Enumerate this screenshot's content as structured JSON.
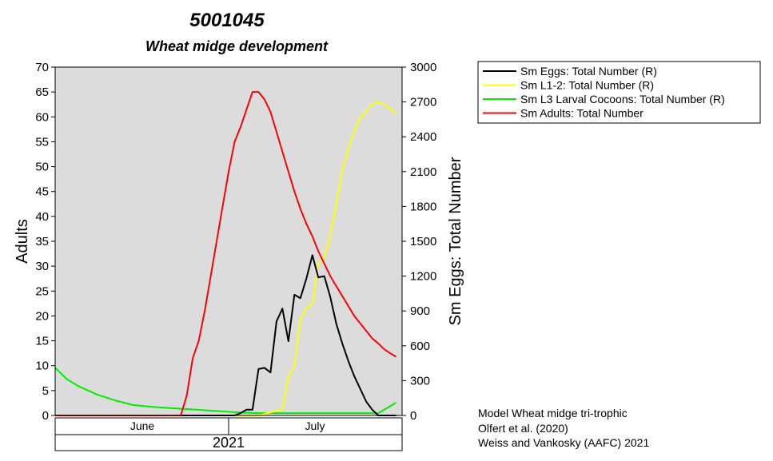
{
  "chart_data": {
    "type": "line",
    "title": "5001045",
    "subtitle": "Wheat midge development",
    "ylabel_left": "Adults",
    "ylabel_right": "Sm Eggs: Total Number",
    "ylim_left": [
      0,
      70
    ],
    "ylim_right": [
      0,
      3000
    ],
    "yticks_left": [
      0,
      5,
      10,
      15,
      20,
      25,
      30,
      35,
      40,
      45,
      50,
      55,
      60,
      65,
      70
    ],
    "yticks_right": [
      0,
      300,
      600,
      900,
      1200,
      1500,
      1800,
      2100,
      2400,
      2700,
      3000
    ],
    "xlim": [
      1,
      59
    ],
    "x_unit_note": "day index starting June 1, 2021",
    "month_bands": [
      {
        "label": "June",
        "from": 1,
        "to": 31
      },
      {
        "label": "July",
        "from": 31,
        "to": 59
      }
    ],
    "year_label": "2021",
    "grid": false,
    "legend_position": "right",
    "series": [
      {
        "name": "Sm Eggs: Total Number (R)",
        "axis": "right",
        "color": "#000000",
        "x": [
          1,
          5,
          10,
          15,
          20,
          25,
          30,
          31,
          32,
          33,
          34,
          35,
          36,
          37,
          38,
          39,
          40,
          41,
          42,
          43,
          44,
          45,
          46,
          47,
          48,
          49,
          50,
          51,
          52,
          53,
          54,
          55,
          56,
          57,
          58
        ],
        "y": [
          0,
          0,
          0,
          0,
          0,
          0,
          0,
          0,
          20,
          50,
          50,
          400,
          410,
          370,
          810,
          920,
          640,
          1040,
          1010,
          1180,
          1380,
          1190,
          1200,
          1020,
          790,
          620,
          470,
          340,
          230,
          120,
          50,
          0,
          0,
          0,
          0
        ]
      },
      {
        "name": "Sm L1-2: Total Number (R)",
        "axis": "right",
        "color": "#ffff00",
        "x": [
          1,
          5,
          10,
          15,
          20,
          25,
          30,
          35,
          38,
          39,
          40,
          41,
          42,
          43,
          44,
          45,
          46,
          47,
          48,
          49,
          50,
          51,
          52,
          53,
          54,
          55,
          56,
          57,
          58
        ],
        "y": [
          0,
          0,
          0,
          0,
          0,
          0,
          0,
          0,
          40,
          50,
          340,
          420,
          830,
          920,
          960,
          1320,
          1360,
          1550,
          1820,
          2110,
          2300,
          2450,
          2560,
          2620,
          2680,
          2700,
          2680,
          2640,
          2600
        ]
      },
      {
        "name": "Sm L3 Larval Cocoons: Total Number (R)",
        "axis": "right",
        "color": "#00ee00",
        "x": [
          1,
          3,
          5,
          8,
          11,
          14,
          17,
          20,
          23,
          26,
          29,
          32,
          35,
          38,
          41,
          44,
          47,
          50,
          53,
          55,
          56,
          57,
          58
        ],
        "y": [
          410,
          310,
          250,
          180,
          130,
          90,
          75,
          65,
          55,
          45,
          35,
          25,
          20,
          20,
          20,
          20,
          20,
          20,
          20,
          20,
          50,
          80,
          110
        ]
      },
      {
        "name": "Sm Adults: Total Number",
        "axis": "left",
        "color": "#ff0000",
        "x": [
          1,
          10,
          20,
          22,
          23,
          24,
          25,
          26,
          27,
          28,
          29,
          30,
          31,
          32,
          33,
          34,
          35,
          36,
          37,
          38,
          39,
          40,
          41,
          42,
          43,
          44,
          45,
          46,
          47,
          48,
          49,
          50,
          51,
          52,
          53,
          54,
          55,
          56,
          57,
          58
        ],
        "y": [
          0,
          0,
          0,
          0,
          4,
          11.5,
          15,
          21,
          28,
          35,
          42,
          49,
          55,
          58,
          61.5,
          65,
          65,
          63.5,
          61,
          57,
          53,
          49,
          45,
          41.5,
          38.5,
          36,
          33,
          30.5,
          28,
          26,
          24,
          22,
          20,
          18.5,
          17,
          15.5,
          14.5,
          13.3,
          12.5,
          11.8
        ]
      }
    ]
  },
  "legend": {
    "items": [
      {
        "label": "Sm Eggs: Total Number (R)",
        "color": "#000000"
      },
      {
        "label": "Sm L1-2: Total Number (R)",
        "color": "#ffff00"
      },
      {
        "label": "Sm L3 Larval Cocoons: Total Number (R)",
        "color": "#00ee00"
      },
      {
        "label": "Sm Adults: Total Number",
        "color": "#ff0000"
      }
    ]
  },
  "credits": {
    "line1": "Model Wheat midge tri-trophic",
    "line2": "Olfert et al. (2020)",
    "line3": "Weiss and Vankosky (AAFC) 2021"
  },
  "colors": {
    "plot_background": "#dcdcdc",
    "axis": "#000000"
  }
}
